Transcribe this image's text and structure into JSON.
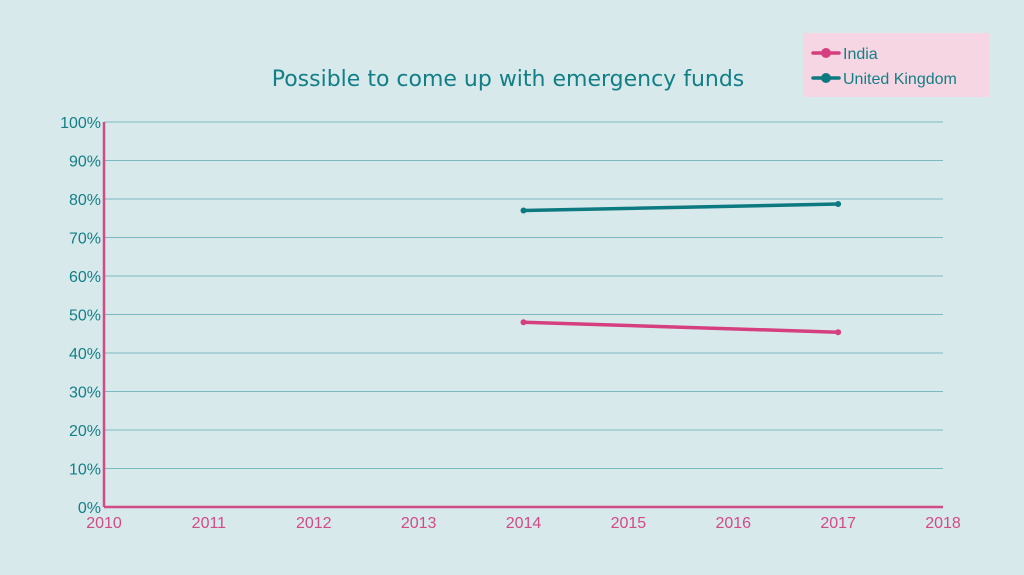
{
  "chart_data": {
    "type": "line",
    "title": "Possible to come up with emergency funds",
    "xlabel": "",
    "ylabel": "",
    "x_ticks": [
      "2010",
      "2011",
      "2012",
      "2013",
      "2014",
      "2015",
      "2016",
      "2017",
      "2018"
    ],
    "y_ticks": [
      "0%",
      "10%",
      "20%",
      "30%",
      "40%",
      "50%",
      "60%",
      "70%",
      "80%",
      "90%",
      "100%"
    ],
    "xlim": [
      2010,
      2018
    ],
    "ylim": [
      0,
      100
    ],
    "grid": "horizontal",
    "legend_position": "top-right",
    "series": [
      {
        "name": "India",
        "color": "#d63f7f",
        "x": [
          2014,
          2017
        ],
        "y": [
          48,
          45.4
        ]
      },
      {
        "name": "United Kingdom",
        "color": "#0c7a80",
        "x": [
          2014,
          2017
        ],
        "y": [
          77,
          78.7
        ]
      }
    ]
  },
  "colors": {
    "background": "#d8e9ec",
    "legend_background": "#f6d6e3",
    "grid": "#5ba9b0",
    "axis": "#d24a86",
    "x_tick_text": "#d24a86",
    "y_tick_text": "#127f86"
  }
}
